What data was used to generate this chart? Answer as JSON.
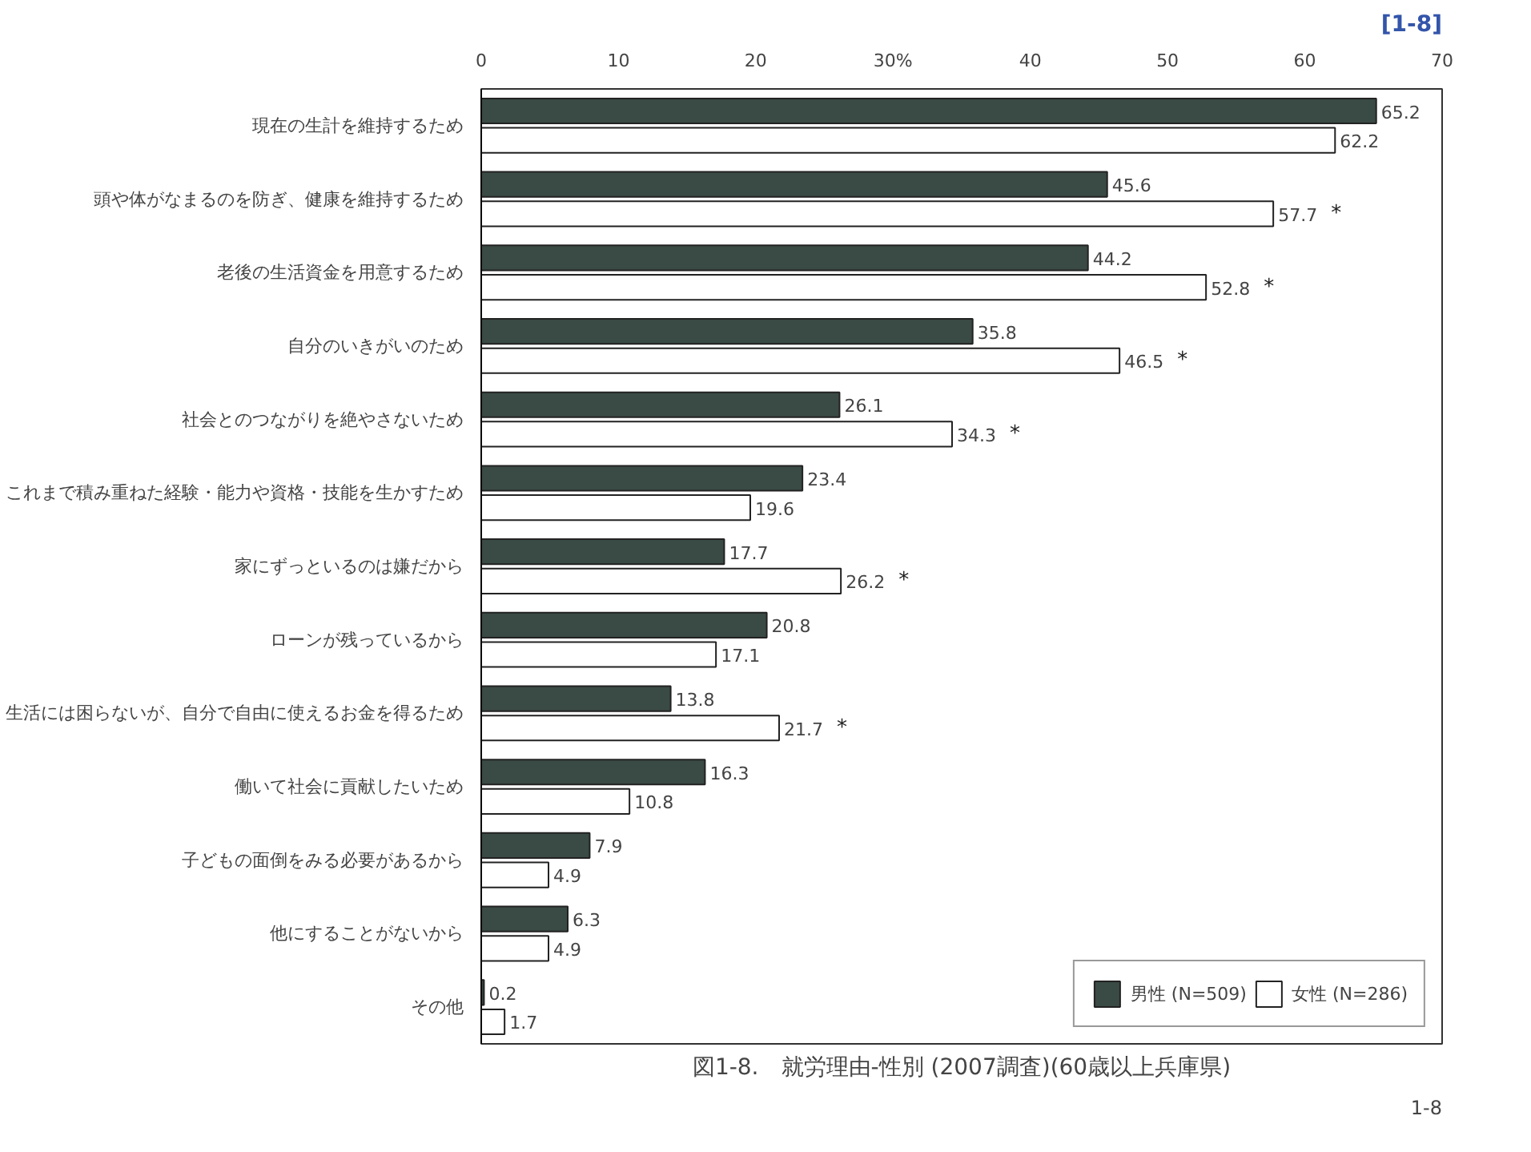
{
  "chart_data": {
    "type": "bar",
    "orientation": "horizontal",
    "legend": "bottom right",
    "grid": false,
    "data_labels": true,
    "categories": [
      "現在の生計を維持するため",
      "頭や体がなまるのを防ぎ、健康を維持するため",
      "老後の生活資金を用意するため",
      "自分のいきがいのため",
      "社会とのつながりを絶やさないため",
      "これまで積み重ねた経験・能力や資格・技能を生かすため",
      "家にずっといるのは嫌だから",
      "ローンが残っているから",
      "生活には困らないが、自分で自由に使えるお金を得るため",
      "働いて社会に貢献したいため",
      "子どもの面倒をみる必要があるから",
      "他にすることがないから",
      "その他"
    ],
    "xlim": [
      0,
      70
    ],
    "xticks": [
      0,
      10,
      20,
      {
        "value": 30,
        "label": "30%"
      },
      40,
      50,
      60,
      70
    ],
    "series": [
      {
        "name": "男性 (N=509)",
        "color": "#3a4a44",
        "values": [
          65.2,
          45.6,
          44.2,
          35.8,
          26.1,
          23.4,
          17.7,
          20.8,
          13.8,
          16.3,
          7.9,
          6.3,
          0.2
        ]
      },
      {
        "name": "女性 (N=286)",
        "color": "#ffffff",
        "values": [
          62.2,
          57.7,
          52.8,
          46.5,
          34.3,
          19.6,
          26.2,
          17.1,
          21.7,
          10.8,
          4.9,
          4.9,
          1.7
        ]
      }
    ],
    "annotations": [
      "[1-8]",
      "図1-8.　就労理由-性別 (2007調査)(60歳以上兵庫県)",
      "1-8",
      {
        "text": "*",
        "x": 57.7,
        "y": "頭や体がなまるのを防ぎ、健康を維持するため"
      },
      {
        "text": "*",
        "x": 52.8,
        "y": "老後の生活資金を用意するため"
      },
      {
        "text": "*",
        "x": 46.5,
        "y": "自分のいきがいのため"
      },
      {
        "text": "*",
        "x": 34.3,
        "y": "社会とのつながりを絶やさないため"
      },
      {
        "text": "*",
        "x": 26.2,
        "y": "家にずっといるのは嫌だから"
      },
      {
        "text": "*",
        "x": 21.7,
        "y": "生活には困らないが、自分で自由に使えるお金を得るため"
      }
    ]
  }
}
